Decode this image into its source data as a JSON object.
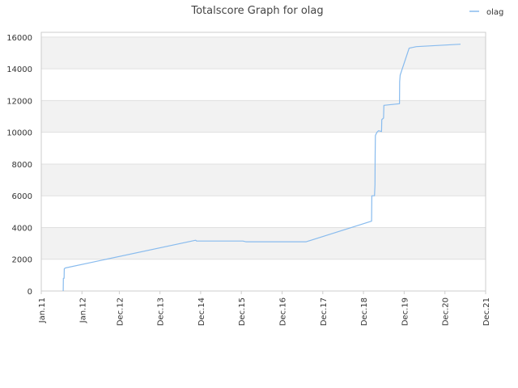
{
  "chart_data": {
    "type": "line",
    "title": "Totalscore Graph for olag",
    "xlabel": "",
    "ylabel": "",
    "x_axis": {
      "type": "date",
      "range": [
        "2011-01-01",
        "2021-12-01"
      ],
      "tick_labels": [
        "Jan.11",
        "Jan.12",
        "Dec.12",
        "Dec.13",
        "Dec.14",
        "Dec.15",
        "Dec.16",
        "Dec.17",
        "Dec.18",
        "Dec.19",
        "Dec.20",
        "Dec.21"
      ],
      "tick_dates": [
        "2011-01-01",
        "2012-01-01",
        "2012-12-01",
        "2013-12-01",
        "2014-12-01",
        "2015-12-01",
        "2016-12-01",
        "2017-12-01",
        "2018-12-01",
        "2019-12-01",
        "2020-12-01",
        "2021-12-01"
      ]
    },
    "y_axis": {
      "range": [
        0,
        16300
      ],
      "ticks": [
        0,
        2000,
        4000,
        6000,
        8000,
        10000,
        12000,
        14000,
        16000
      ],
      "tick_labels": [
        "0",
        "2000",
        "4000",
        "6000",
        "8000",
        "10000",
        "12000",
        "14000",
        "16000"
      ]
    },
    "grid": true,
    "legend": {
      "position": "top-right"
    },
    "colors": {
      "series": "#88bbee",
      "band": "#f2f2f2",
      "grid": "#e0e0e0",
      "axis": "#cccccc"
    },
    "series": [
      {
        "name": "olag",
        "points": [
          [
            "2011-07-17",
            0
          ],
          [
            "2011-07-18",
            800
          ],
          [
            "2011-07-25",
            800
          ],
          [
            "2011-07-26",
            1400
          ],
          [
            "2011-08-05",
            1450
          ],
          [
            "2014-10-18",
            3200
          ],
          [
            "2014-10-25",
            3150
          ],
          [
            "2015-12-15",
            3150
          ],
          [
            "2016-01-10",
            3100
          ],
          [
            "2017-07-05",
            3100
          ],
          [
            "2019-02-12",
            4400
          ],
          [
            "2019-02-14",
            6000
          ],
          [
            "2019-03-10",
            6000
          ],
          [
            "2019-03-14",
            6700
          ],
          [
            "2019-03-16",
            8500
          ],
          [
            "2019-03-18",
            9800
          ],
          [
            "2019-04-01",
            10000
          ],
          [
            "2019-04-15",
            10100
          ],
          [
            "2019-05-12",
            10050
          ],
          [
            "2019-05-14",
            10800
          ],
          [
            "2019-05-30",
            10900
          ],
          [
            "2019-06-02",
            11700
          ],
          [
            "2019-10-20",
            11800
          ],
          [
            "2019-10-22",
            13200
          ],
          [
            "2019-10-26",
            13600
          ],
          [
            "2020-01-15",
            15300
          ],
          [
            "2020-03-20",
            15400
          ],
          [
            "2021-04-20",
            15550
          ]
        ]
      }
    ]
  }
}
